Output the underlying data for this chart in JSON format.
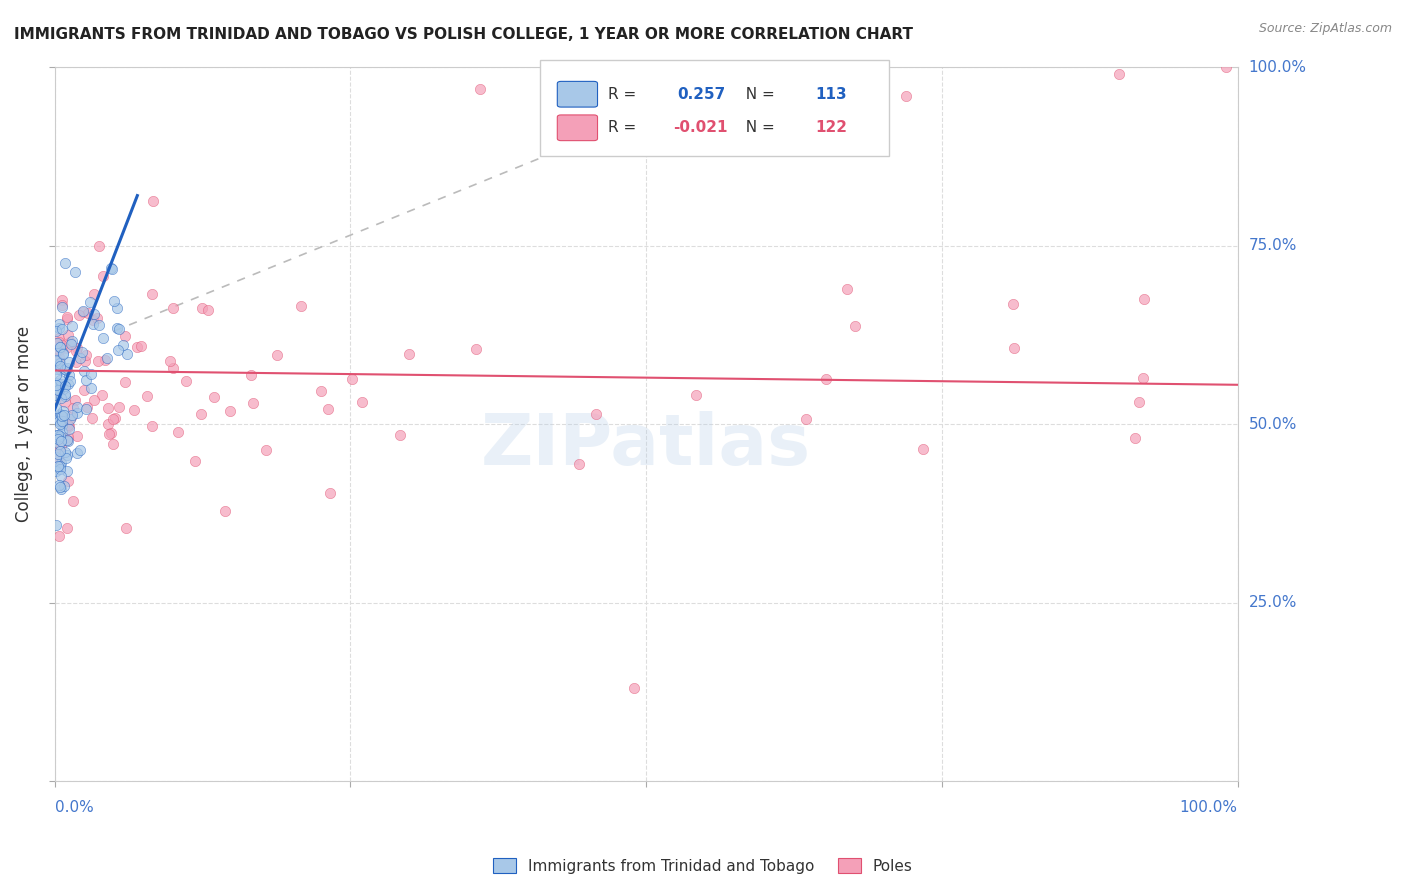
{
  "title": "IMMIGRANTS FROM TRINIDAD AND TOBAGO VS POLISH COLLEGE, 1 YEAR OR MORE CORRELATION CHART",
  "source": "Source: ZipAtlas.com",
  "ylabel": "College, 1 year or more",
  "legend_series1": "Immigrants from Trinidad and Tobago",
  "legend_series2": "Poles",
  "color_blue": "#a8c8e8",
  "color_pink": "#f4a0b8",
  "color_blue_line": "#2060c0",
  "color_pink_line": "#e05070",
  "color_dashed_line": "#bbbbbb",
  "background_color": "#ffffff",
  "grid_color": "#dddddd",
  "title_color": "#222222",
  "axis_label_color": "#4477cc",
  "watermark": "ZIPatlas",
  "R1": 0.257,
  "N1": 113,
  "R2": -0.021,
  "N2": 122
}
